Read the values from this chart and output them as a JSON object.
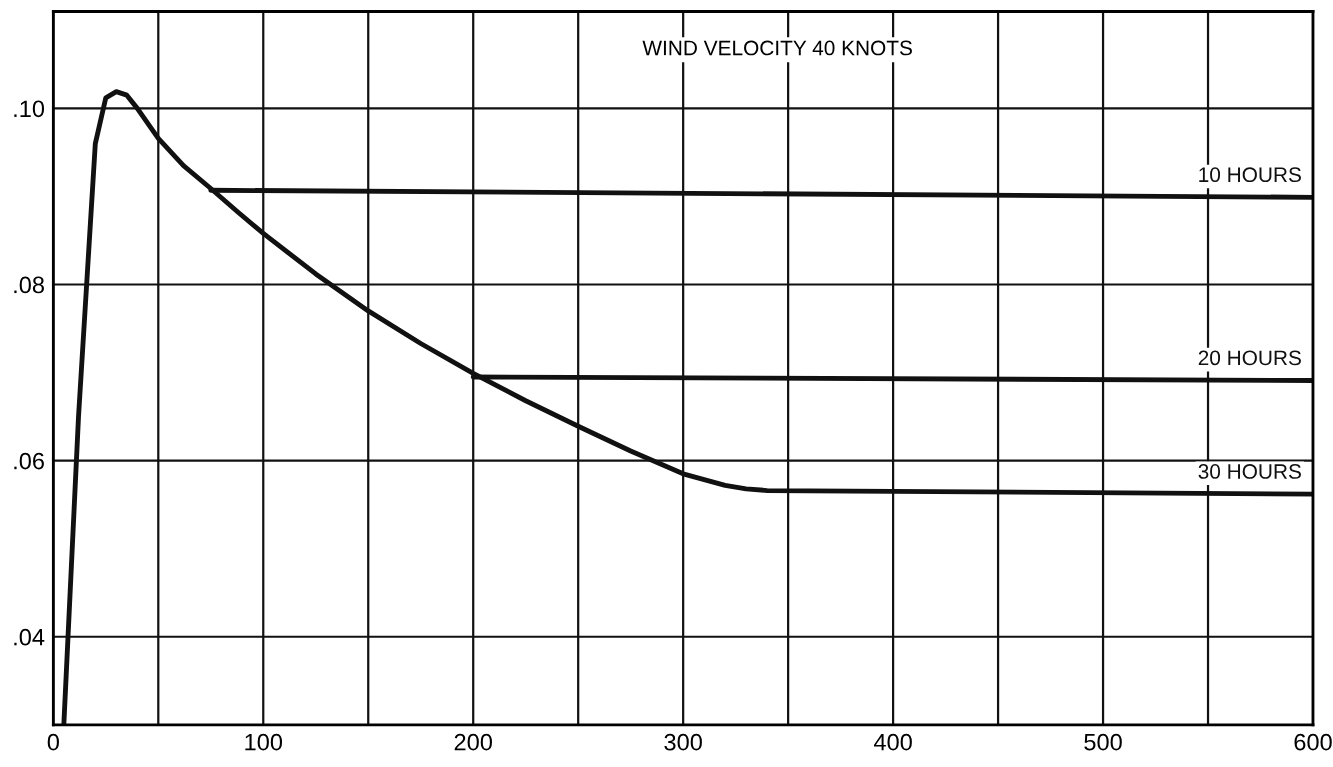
{
  "chart_data": {
    "type": "line",
    "title": "WIND VELOCITY 40 KNOTS",
    "series": [
      {
        "name": "10 HOURS",
        "color": "#111111",
        "x": [
          75,
          600
        ],
        "values": [
          0.0907,
          0.0899
        ]
      },
      {
        "name": "20 HOURS",
        "color": "#111111",
        "x": [
          200,
          600
        ],
        "values": [
          0.0695,
          0.0691
        ]
      },
      {
        "name": "30 HOURS",
        "color": "#111111",
        "x": [
          5,
          12,
          20,
          25,
          30,
          35,
          40,
          50,
          62,
          75,
          88,
          100,
          125,
          150,
          175,
          200,
          225,
          250,
          275,
          300,
          320,
          330,
          340,
          600
        ],
        "values": [
          0.03,
          0.065,
          0.096,
          0.1012,
          0.1019,
          0.1015,
          0.1,
          0.0966,
          0.0935,
          0.0909,
          0.0882,
          0.0858,
          0.0812,
          0.077,
          0.0733,
          0.0699,
          0.0668,
          0.0639,
          0.0611,
          0.0585,
          0.0572,
          0.0568,
          0.0566,
          0.0562
        ]
      }
    ],
    "xlim": [
      0,
      600
    ],
    "xticks": [
      0,
      {
        "value": 50,
        "label": null
      },
      100,
      {
        "value": 150,
        "label": null
      },
      200,
      {
        "value": 250,
        "label": null
      },
      300,
      {
        "value": 350,
        "label": null
      },
      400,
      {
        "value": 450,
        "label": null
      },
      500,
      {
        "value": 550,
        "label": null
      },
      600
    ],
    "ylim": [
      0.03,
      0.111
    ],
    "yticks": [
      {
        "value": 0.04,
        "label": ".04"
      },
      {
        "value": 0.06,
        "label": ".06"
      },
      {
        "value": 0.08,
        "label": ".08"
      },
      {
        "value": 0.1,
        "label": ".10"
      }
    ],
    "grid": true,
    "legend": false,
    "marker": "none",
    "line_style": "solid"
  }
}
